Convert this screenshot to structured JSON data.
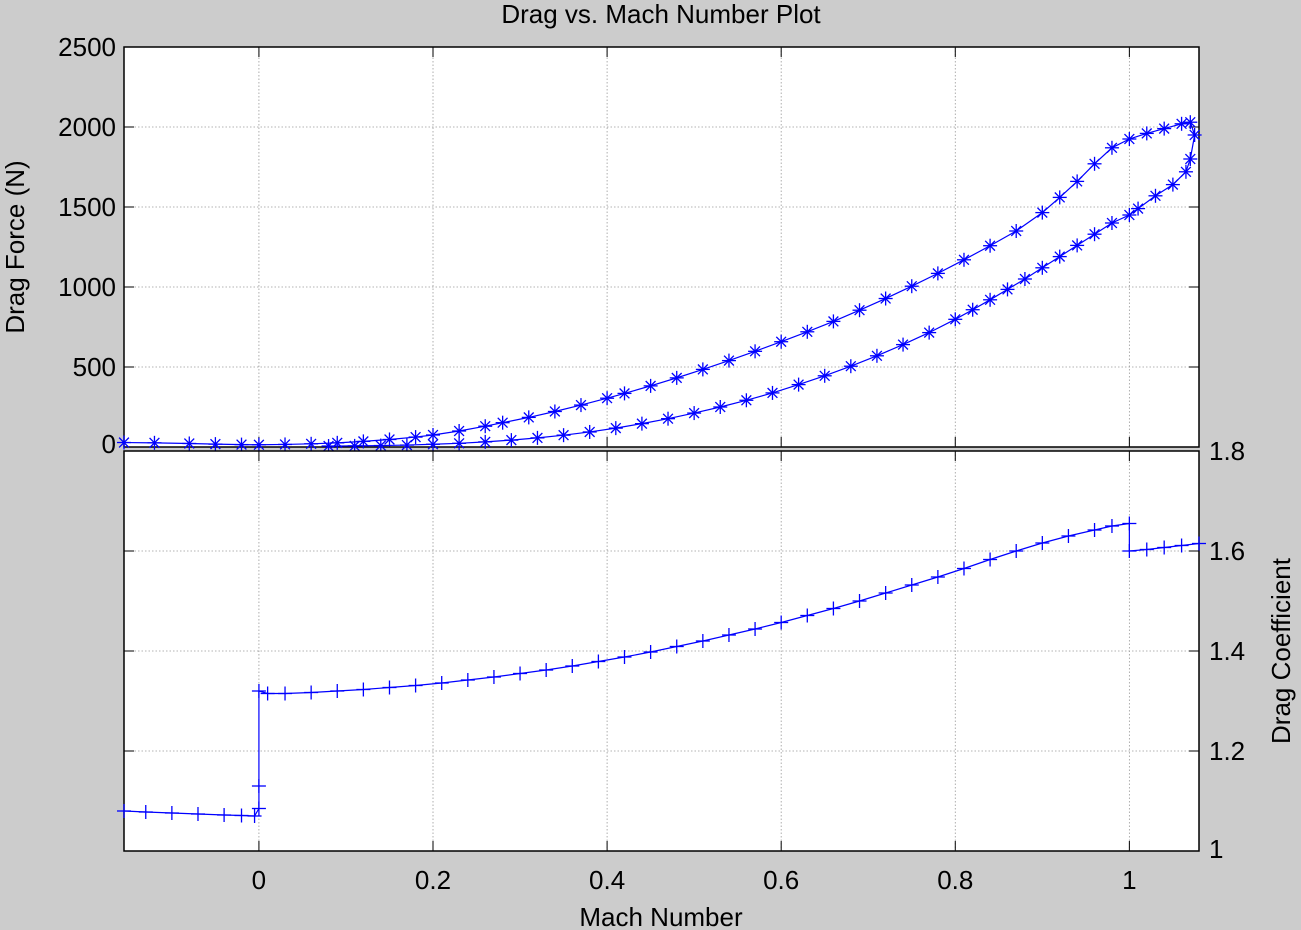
{
  "window": {
    "background": "#cccccc",
    "marker_color": "#0000ff"
  },
  "chart_data": [
    {
      "type": "scatter",
      "title": "Drag vs. Mach Number Plot",
      "xlabel": "",
      "ylabel": "Drag Force (N)",
      "xlim": [
        -0.155,
        1.08
      ],
      "ylim": [
        0,
        2500
      ],
      "y_ticks": [
        "0",
        "500",
        "1000",
        "1500",
        "2000",
        "2500"
      ],
      "grid": true,
      "marker": "asterisk",
      "series": [
        {
          "points": [
            [
              -0.155,
              28
            ],
            [
              -0.12,
              26
            ],
            [
              -0.08,
              22
            ],
            [
              -0.05,
              18
            ],
            [
              -0.02,
              15
            ],
            [
              0.0,
              14
            ],
            [
              0.03,
              16
            ],
            [
              0.06,
              20
            ],
            [
              0.09,
              26
            ],
            [
              0.12,
              35
            ],
            [
              0.15,
              47
            ],
            [
              0.18,
              62
            ],
            [
              0.2,
              75
            ],
            [
              0.23,
              100
            ],
            [
              0.26,
              130
            ],
            [
              0.28,
              152
            ],
            [
              0.31,
              185
            ],
            [
              0.34,
              222
            ],
            [
              0.37,
              262
            ],
            [
              0.4,
              305
            ],
            [
              0.42,
              335
            ],
            [
              0.45,
              382
            ],
            [
              0.48,
              432
            ],
            [
              0.51,
              485
            ],
            [
              0.54,
              540
            ],
            [
              0.57,
              598
            ],
            [
              0.6,
              658
            ],
            [
              0.63,
              720
            ],
            [
              0.66,
              785
            ],
            [
              0.69,
              855
            ],
            [
              0.72,
              928
            ],
            [
              0.75,
              1005
            ],
            [
              0.78,
              1085
            ],
            [
              0.81,
              1170
            ],
            [
              0.84,
              1258
            ],
            [
              0.87,
              1350
            ],
            [
              0.9,
              1465
            ],
            [
              0.92,
              1560
            ],
            [
              0.94,
              1660
            ],
            [
              0.96,
              1770
            ],
            [
              0.98,
              1870
            ],
            [
              1.0,
              1925
            ],
            [
              1.02,
              1960
            ],
            [
              1.04,
              1990
            ],
            [
              1.06,
              2020
            ],
            [
              1.07,
              2030
            ],
            [
              1.075,
              1950
            ],
            [
              1.07,
              1800
            ],
            [
              1.065,
              1720
            ],
            [
              1.05,
              1640
            ],
            [
              1.03,
              1570
            ],
            [
              1.01,
              1490
            ],
            [
              1.0,
              1450
            ],
            [
              0.98,
              1400
            ],
            [
              0.96,
              1330
            ],
            [
              0.94,
              1260
            ],
            [
              0.92,
              1190
            ],
            [
              0.9,
              1120
            ],
            [
              0.88,
              1050
            ],
            [
              0.86,
              985
            ],
            [
              0.84,
              920
            ],
            [
              0.82,
              858
            ],
            [
              0.8,
              798
            ],
            [
              0.77,
              715
            ],
            [
              0.74,
              640
            ],
            [
              0.71,
              570
            ],
            [
              0.68,
              505
            ],
            [
              0.65,
              445
            ],
            [
              0.62,
              390
            ],
            [
              0.59,
              338
            ],
            [
              0.56,
              292
            ],
            [
              0.53,
              250
            ],
            [
              0.5,
              212
            ],
            [
              0.47,
              177
            ],
            [
              0.44,
              146
            ],
            [
              0.41,
              118
            ],
            [
              0.38,
              94
            ],
            [
              0.35,
              74
            ],
            [
              0.32,
              57
            ],
            [
              0.29,
              43
            ],
            [
              0.26,
              32
            ],
            [
              0.23,
              23
            ],
            [
              0.2,
              17
            ],
            [
              0.17,
              12
            ],
            [
              0.14,
              9
            ],
            [
              0.11,
              7
            ],
            [
              0.08,
              6
            ]
          ]
        }
      ]
    },
    {
      "type": "scatter",
      "title": "",
      "xlabel": "Mach Number",
      "ylabel": "Drag Coefficient",
      "xlim": [
        -0.155,
        1.08
      ],
      "ylim": [
        1.0,
        1.8
      ],
      "x_ticks": [
        "0",
        "0.2",
        "0.4",
        "0.6",
        "0.8",
        "1"
      ],
      "y_ticks": [
        "1",
        "1.2",
        "1.4",
        "1.6",
        "1.8"
      ],
      "grid": true,
      "marker": "plus",
      "series": [
        {
          "points": [
            [
              -0.155,
              1.08
            ],
            [
              -0.13,
              1.078
            ],
            [
              -0.1,
              1.076
            ],
            [
              -0.07,
              1.074
            ],
            [
              -0.04,
              1.072
            ],
            [
              -0.02,
              1.071
            ],
            [
              -0.005,
              1.07
            ],
            [
              0.0,
              1.085
            ],
            [
              0.0,
              1.13
            ],
            [
              0.0,
              1.32
            ],
            [
              0.01,
              1.315
            ],
            [
              0.03,
              1.315
            ],
            [
              0.06,
              1.317
            ],
            [
              0.09,
              1.32
            ],
            [
              0.12,
              1.323
            ],
            [
              0.15,
              1.327
            ],
            [
              0.18,
              1.331
            ],
            [
              0.21,
              1.336
            ],
            [
              0.24,
              1.342
            ],
            [
              0.27,
              1.348
            ],
            [
              0.3,
              1.355
            ],
            [
              0.33,
              1.362
            ],
            [
              0.36,
              1.37
            ],
            [
              0.39,
              1.379
            ],
            [
              0.42,
              1.388
            ],
            [
              0.45,
              1.398
            ],
            [
              0.48,
              1.409
            ],
            [
              0.51,
              1.42
            ],
            [
              0.54,
              1.432
            ],
            [
              0.57,
              1.444
            ],
            [
              0.6,
              1.457
            ],
            [
              0.63,
              1.471
            ],
            [
              0.66,
              1.485
            ],
            [
              0.69,
              1.5
            ],
            [
              0.72,
              1.516
            ],
            [
              0.75,
              1.532
            ],
            [
              0.78,
              1.548
            ],
            [
              0.81,
              1.565
            ],
            [
              0.84,
              1.583
            ],
            [
              0.87,
              1.6
            ],
            [
              0.9,
              1.616
            ],
            [
              0.93,
              1.63
            ],
            [
              0.96,
              1.642
            ],
            [
              0.98,
              1.65
            ],
            [
              1.0,
              1.655
            ],
            [
              1.0,
              1.6
            ],
            [
              1.02,
              1.603
            ],
            [
              1.04,
              1.607
            ],
            [
              1.06,
              1.611
            ],
            [
              1.08,
              1.615
            ]
          ]
        }
      ]
    }
  ]
}
